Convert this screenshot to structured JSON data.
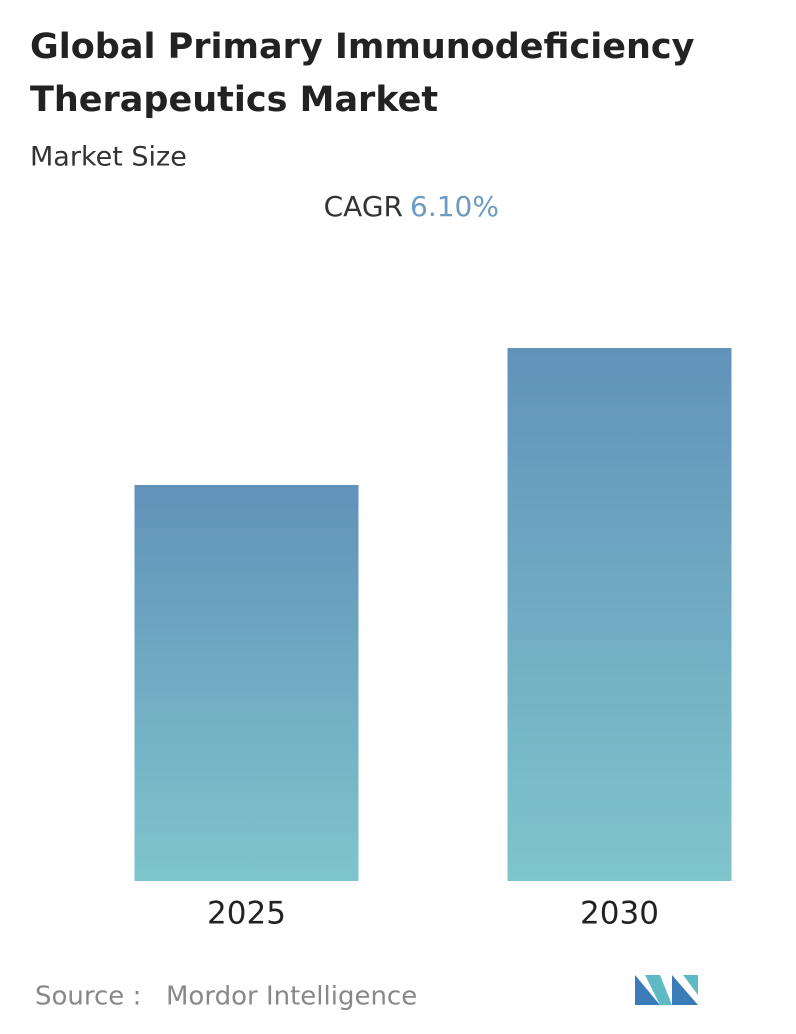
{
  "chart_data": {
    "type": "bar",
    "title_lines": [
      "Global Primary Immunodeficiency",
      "Therapeutics Market"
    ],
    "subtitle": "Market Size",
    "cagr_label": "CAGR",
    "cagr_value": "6.10%",
    "categories": [
      "2025",
      "2030"
    ],
    "values": [
      74.3,
      100
    ],
    "ylim": [
      0,
      100
    ],
    "source_label": "Source :",
    "source": "Mordor Intelligence"
  }
}
